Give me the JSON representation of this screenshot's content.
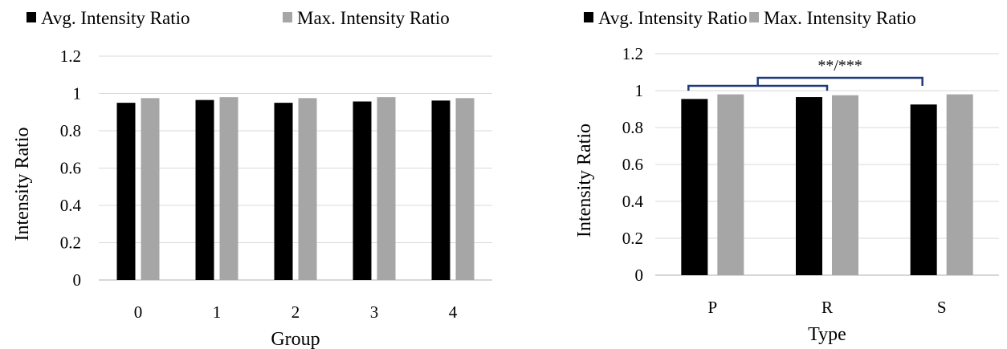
{
  "colors": {
    "avg": "#000000",
    "max": "#a6a6a6",
    "grid": "#d9d9d9",
    "bracket": "#1f3a7a"
  },
  "chart_data": [
    {
      "type": "bar",
      "xlabel": "Group",
      "ylabel": "Intensity Ratio",
      "categories": [
        "0",
        "1",
        "2",
        "3",
        "4"
      ],
      "ylim": [
        0,
        1.2
      ],
      "yticks": [
        "0",
        "0.2",
        "0.4",
        "0.6",
        "0.8",
        "1",
        "1.2"
      ],
      "grid": true,
      "legend": "top-left",
      "series": [
        {
          "name": "Avg. Intensity Ratio",
          "color": "#000000",
          "values": [
            0.95,
            0.965,
            0.95,
            0.957,
            0.962
          ]
        },
        {
          "name": "Max. Intensity Ratio",
          "color": "#a6a6a6",
          "values": [
            0.975,
            0.98,
            0.975,
            0.98,
            0.975
          ]
        }
      ]
    },
    {
      "type": "bar",
      "xlabel": "Type",
      "ylabel": "Intensity Ratio",
      "categories": [
        "P",
        "R",
        "S"
      ],
      "ylim": [
        0,
        1.2
      ],
      "yticks": [
        "0",
        "0.2",
        "0.4",
        "0.6",
        "0.8",
        "1",
        "1.2"
      ],
      "grid": true,
      "legend": "top-left",
      "series": [
        {
          "name": "Avg. Intensity Ratio",
          "color": "#000000",
          "values": [
            0.955,
            0.965,
            0.925
          ]
        },
        {
          "name": "Max. Intensity Ratio",
          "color": "#a6a6a6",
          "values": [
            0.98,
            0.975,
            0.98
          ]
        }
      ],
      "annotations": [
        {
          "text": "**/***",
          "brackets": [
            [
              "P",
              "R"
            ],
            [
              "P-R",
              "S"
            ]
          ]
        }
      ]
    }
  ]
}
